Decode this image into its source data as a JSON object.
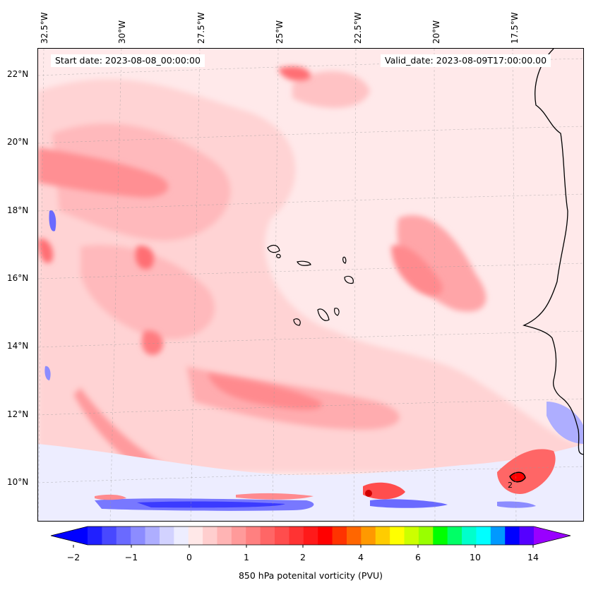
{
  "map": {
    "start_date": "Start date: 2023-08-08_00:00:00",
    "valid_date": "Valid_date: 2023-08-09T17:00:00.00",
    "lon_labels": [
      "32.5°W",
      "30°W",
      "27.5°W",
      "25°W",
      "22.5°W",
      "20°W",
      "17.5°W"
    ],
    "lat_labels": [
      "22°N",
      "20°N",
      "18°N",
      "16°N",
      "14°N",
      "12°N",
      "10°N"
    ],
    "contour_label": "2"
  },
  "colorbar": {
    "title": "850 hPa potenital vorticity (PVU)",
    "tick_labels": [
      "−2",
      "−1",
      "0",
      "1",
      "2",
      "4",
      "6",
      "10",
      "14"
    ],
    "colors": [
      "#0000ff",
      "#2020ff",
      "#4848ff",
      "#6a6aff",
      "#8c8cff",
      "#aeaeff",
      "#d2d2ff",
      "#ededff",
      "#ffe8e8",
      "#ffcece",
      "#ffb4b4",
      "#ff9a9a",
      "#ff8080",
      "#ff6666",
      "#ff4d4d",
      "#ff3333",
      "#ff1a1a",
      "#ff0000",
      "#ff3300",
      "#ff6600",
      "#ff9900",
      "#ffcc00",
      "#ffff00",
      "#ccff00",
      "#99ff00",
      "#00ff00",
      "#00ff66",
      "#00ffcc",
      "#00ffff",
      "#0099ff",
      "#0000ff",
      "#5500ff",
      "#9900ff"
    ]
  }
}
